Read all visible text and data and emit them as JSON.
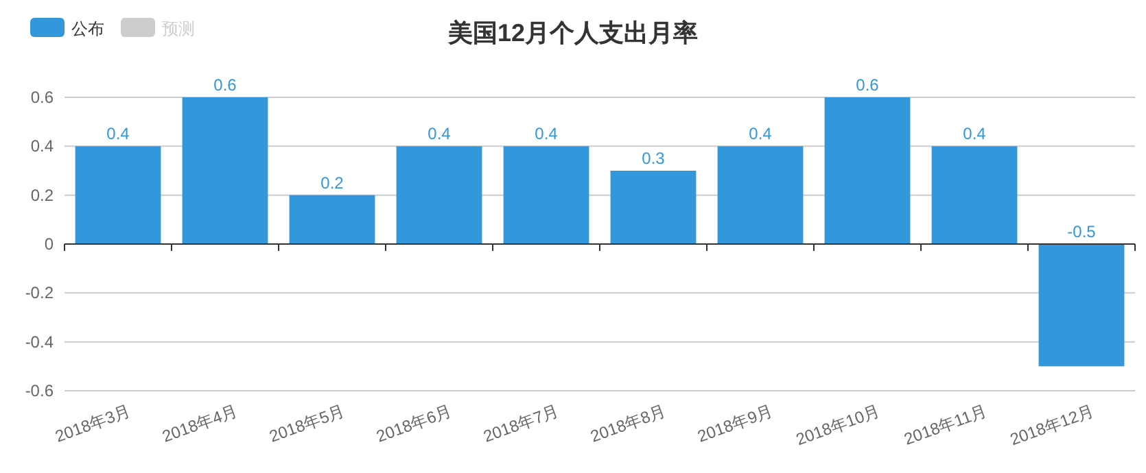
{
  "chart_data": {
    "type": "bar",
    "title": "美国12月个人支出月率",
    "categories": [
      "2018年3月",
      "2018年4月",
      "2018年5月",
      "2018年6月",
      "2018年7月",
      "2018年8月",
      "2018年9月",
      "2018年10月",
      "2018年11月",
      "2018年12月"
    ],
    "series": [
      {
        "name": "公布",
        "color": "#3398db",
        "values": [
          0.4,
          0.6,
          0.2,
          0.4,
          0.4,
          0.3,
          0.4,
          0.6,
          0.4,
          -0.5
        ]
      },
      {
        "name": "预测",
        "color": "#cccccc",
        "values": [
          null,
          null,
          null,
          null,
          null,
          null,
          null,
          null,
          null,
          null
        ]
      }
    ],
    "ylim": [
      -0.6,
      0.6
    ],
    "yticks": [
      -0.6,
      -0.4,
      -0.2,
      0,
      0.2,
      0.4,
      0.6
    ],
    "grid": "y",
    "legend": "top left",
    "data_labels": true
  }
}
